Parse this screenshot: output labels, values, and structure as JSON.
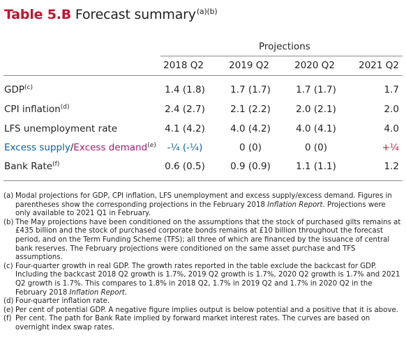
{
  "title": {
    "number": "Table 5.B",
    "text": "Forecast summary",
    "notes_ref": "(a)(b)"
  },
  "projections_label": "Projections",
  "columns": [
    "2018 Q2",
    "2019 Q2",
    "2020 Q2",
    "2021 Q2"
  ],
  "rows": [
    {
      "label": "GDP",
      "sup": "(c)",
      "values": [
        "1.4 (1.8)",
        "1.7 (1.7)",
        "1.7 (1.7)",
        "1.7"
      ]
    },
    {
      "label": "CPI inflation",
      "sup": "(d)",
      "values": [
        "2.4 (2.7)",
        "2.1 (2.2)",
        "2.0 (2.1)",
        "2.0"
      ]
    },
    {
      "label": "LFS unemployment rate",
      "sup": "",
      "values": [
        "4.1 (4.2)",
        "4.0 (4.2)",
        "4.0 (4.1)",
        "4.0"
      ]
    },
    {
      "label_part1": "Excess supply",
      "label_sep": "/",
      "label_part2": "Excess demand",
      "sup": "(e)",
      "values": [
        "-¼ (-¼)",
        "0 (0)",
        "0 (0)",
        "+¼"
      ]
    },
    {
      "label": "Bank Rate",
      "sup": "(f)",
      "values": [
        "0.6 (0.5)",
        "0.9 (0.9)",
        "1.1 (1.1)",
        "1.2"
      ]
    }
  ],
  "notes": [
    {
      "key": "(a)",
      "text_before": "Modal projections for GDP, CPI inflation, LFS unemployment and excess supply/excess demand. Figures in parentheses show the corresponding projections in the February 2018 ",
      "italic": "Inflation Report",
      "text_after": ". Projections were only available to 2021 Q1 in February."
    },
    {
      "key": "(b)",
      "text": "The May projections have been conditioned on the assumptions that the stock of purchased gilts remains at £435 billion and the stock of purchased corporate bonds remains at £10 billion throughout the forecast period, and on the Term Funding Scheme (TFS); all three of which are financed by the issuance of central bank reserves. The February projections were conditioned on the same asset purchase and TFS assumptions."
    },
    {
      "key": "(c)",
      "text_before": "Four-quarter growth in real GDP. The growth rates reported in the table exclude the backcast for GDP. Including the backcast 2018 Q2 growth is 1.7%, 2019 Q2 growth is 1.7%, 2020 Q2 growth is 1.7% and 2021 Q2 growth is 1.7%. This compares to 1.8% in 2018 Q2, 1.7% in 2019 Q2 and 1.7% in 2020 Q2 in the February 2018 ",
      "italic": "Inflation Report",
      "text_after": "."
    },
    {
      "key": "(d)",
      "text": "Four-quarter inflation rate."
    },
    {
      "key": "(e)",
      "text": "Per cent of potential GDP. A negative figure implies output is below potential and a positive that it is above."
    },
    {
      "key": "(f)",
      "text": "Per cent. The path for Bank Rate implied by forward market interest rates. The curves are based on overnight index swap rates."
    }
  ],
  "colors": {
    "title_accent": "#c8102e",
    "excess_supply": "#0b5ea3",
    "excess_demand": "#a4176f",
    "negative_value": "#0b5ea3",
    "positive_value": "#c8102e"
  }
}
